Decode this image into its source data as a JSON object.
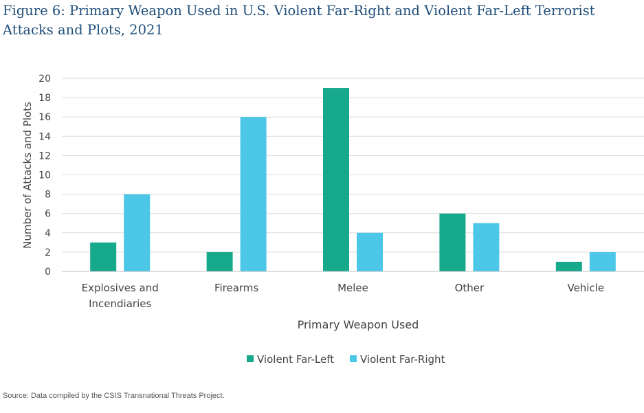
{
  "title": "Figure 6: Primary Weapon Used in U.S. Violent Far-Right and Violent Far-Left Terrorist Attacks and Plots, 2021",
  "source": "Source: Data compiled by the CSIS Transnational Threats Project.",
  "colors": {
    "far_left": "#16a98c",
    "far_right": "#4cc7e8",
    "title": "#1f4e79",
    "grid": "#d9d9d9"
  },
  "chart_data": {
    "type": "bar",
    "title": "Figure 6: Primary Weapon Used in U.S. Violent Far-Right and Violent Far-Left Terrorist Attacks and Plots, 2021",
    "xlabel": "Primary Weapon Used",
    "ylabel": "Number of Attacks and Plots",
    "ylim": [
      0,
      20
    ],
    "yticks": [
      0,
      2,
      4,
      6,
      8,
      10,
      12,
      14,
      16,
      18,
      20
    ],
    "grid": true,
    "legend_position": "bottom",
    "categories": [
      "Explosives and Incendiaries",
      "Firearms",
      "Melee",
      "Other",
      "Vehicle"
    ],
    "category_lines": [
      [
        "Explosives and",
        "Incendiaries"
      ],
      [
        "Firearms"
      ],
      [
        "Melee"
      ],
      [
        "Other"
      ],
      [
        "Vehicle"
      ]
    ],
    "series": [
      {
        "name": "Violent Far-Left",
        "color": "#16a98c",
        "values": [
          3,
          2,
          19,
          6,
          1
        ]
      },
      {
        "name": "Violent Far-Right",
        "color": "#4cc7e8",
        "values": [
          8,
          16,
          4,
          5,
          2
        ]
      }
    ]
  }
}
